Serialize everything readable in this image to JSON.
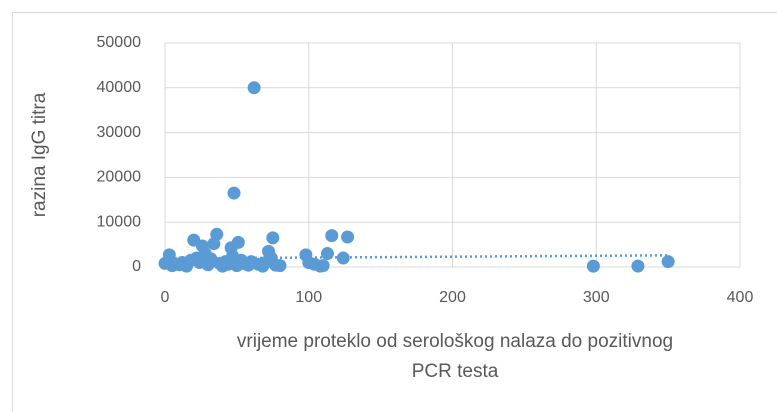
{
  "chart_data": {
    "type": "scatter",
    "xlabel": [
      "vrijeme proteklo od serološkog nalaza do pozitivnog",
      "PCR testa"
    ],
    "ylabel": "razina IgG titra",
    "x": [
      62,
      48,
      36,
      20,
      75,
      116,
      127,
      51,
      34,
      26,
      46,
      72,
      3,
      98,
      113,
      124,
      350,
      298,
      329,
      0,
      5,
      10,
      15,
      18,
      22,
      24,
      28,
      30,
      32,
      38,
      40,
      42,
      44,
      47,
      50,
      53,
      55,
      58,
      60,
      65,
      68,
      70,
      74,
      77,
      80,
      100,
      104,
      108,
      110,
      12,
      7
    ],
    "values": [
      40000,
      16500,
      7300,
      6000,
      6500,
      7000,
      6700,
      5500,
      5200,
      4700,
      4300,
      3500,
      2700,
      2700,
      3000,
      2000,
      1200,
      200,
      200,
      800,
      300,
      500,
      200,
      1500,
      2000,
      1000,
      3000,
      500,
      1800,
      800,
      200,
      1200,
      600,
      2500,
      300,
      1500,
      800,
      400,
      1200,
      600,
      200,
      1000,
      2000,
      400,
      300,
      1000,
      600,
      200,
      300,
      1000,
      600
    ],
    "color": "#5b9bd5",
    "trendline": {
      "x": [
        0,
        350
      ],
      "values": [
        1900,
        2600
      ]
    },
    "xlim": [
      0,
      400
    ],
    "xticks": [
      0,
      100,
      200,
      300,
      400
    ],
    "ylim": [
      0,
      50000
    ],
    "yticks": [
      0,
      10000,
      20000,
      30000,
      40000,
      50000
    ],
    "grid": true
  }
}
